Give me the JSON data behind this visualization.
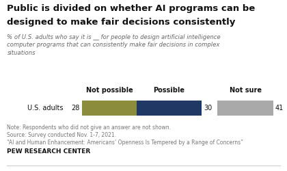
{
  "title_line1": "Public is divided on whether AI programs can be",
  "title_line2": "designed to make fair decisions consistently",
  "subtitle": "% of U.S. adults who say it is __ for people to design artificial intelligence\ncomputer programs that can consistently make fair decisions in complex\nsituations",
  "category": "U.S. adults",
  "not_possible": 28,
  "possible": 30,
  "not_sure": 41,
  "color_not_possible": "#8B8C3C",
  "color_possible": "#1F3864",
  "color_not_sure": "#A9A9A9",
  "label_not_possible": "Not possible",
  "label_possible": "Possible",
  "label_not_sure": "Not sure",
  "note_line1": "Note: Respondents who did not give an answer are not shown.",
  "note_line2": "Source: Survey conducted Nov. 1-7, 2021.",
  "note_line3": "“AI and Human Enhancement: Americans’ Openness Is Tempered by a Range of Concerns”",
  "footer": "PEW RESEARCH CENTER",
  "background": "#FFFFFF"
}
